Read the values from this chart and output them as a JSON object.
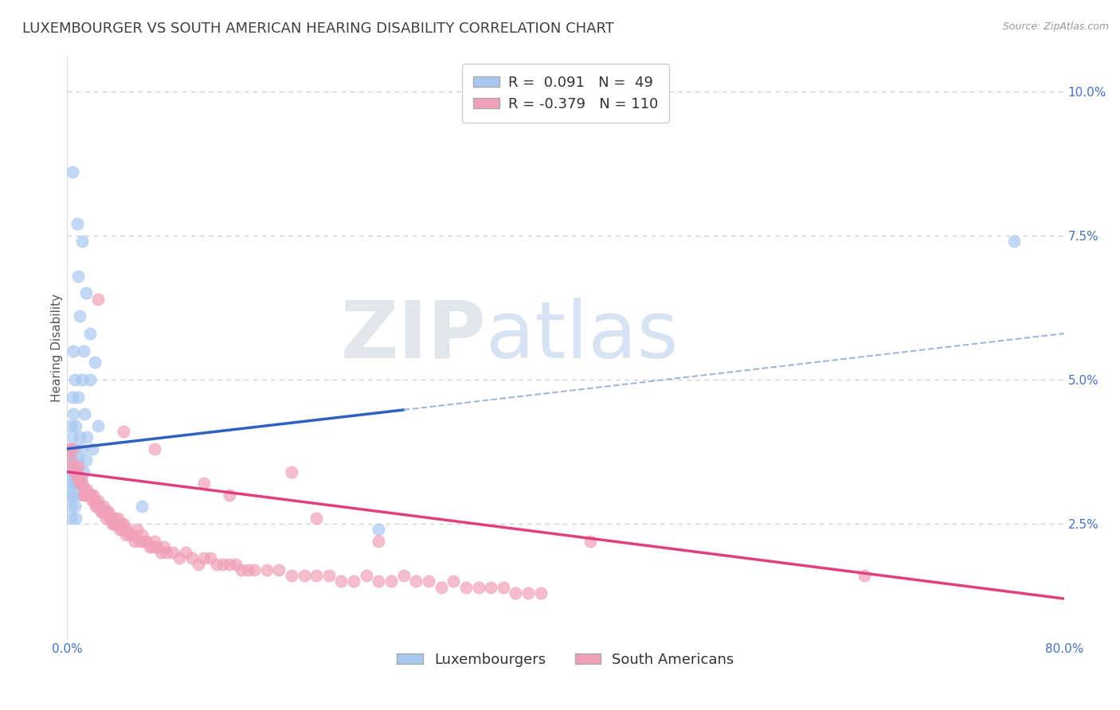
{
  "title": "LUXEMBOURGER VS SOUTH AMERICAN HEARING DISABILITY CORRELATION CHART",
  "source_text": "Source: ZipAtlas.com",
  "ylabel": "Hearing Disability",
  "watermark_zip": "ZIP",
  "watermark_atlas": "atlas",
  "xmin": 0.0,
  "xmax": 0.8,
  "ymin": 0.005,
  "ymax": 0.106,
  "yticks": [
    0.025,
    0.05,
    0.075,
    0.1
  ],
  "ytick_labels": [
    "2.5%",
    "5.0%",
    "7.5%",
    "10.0%"
  ],
  "xticks": [
    0.0,
    0.8
  ],
  "xtick_labels": [
    "0.0%",
    "80.0%"
  ],
  "blue_color": "#A8C8F0",
  "pink_color": "#F0A0B8",
  "blue_line_color": "#3060C0",
  "pink_line_color": "#E04080",
  "dashed_line_color": "#A0B8D8",
  "blue_R": 0.091,
  "blue_N": 49,
  "pink_R": -0.379,
  "pink_N": 110,
  "legend_label_blue": "Luxembourgers",
  "legend_label_pink": "South Americans",
  "background_color": "#FFFFFF",
  "grid_color": "#C8C8C8",
  "title_color": "#404040",
  "axis_label_color": "#4472C4",
  "blue_trend_x0": 0.0,
  "blue_trend_y0": 0.038,
  "blue_trend_x1": 0.8,
  "blue_trend_y1": 0.058,
  "pink_trend_x0": 0.0,
  "pink_trend_y0": 0.034,
  "pink_trend_x1": 0.8,
  "pink_trend_y1": 0.012,
  "blue_scatter": [
    [
      0.004,
      0.086
    ],
    [
      0.008,
      0.077
    ],
    [
      0.012,
      0.074
    ],
    [
      0.009,
      0.068
    ],
    [
      0.015,
      0.065
    ],
    [
      0.01,
      0.061
    ],
    [
      0.018,
      0.058
    ],
    [
      0.005,
      0.055
    ],
    [
      0.013,
      0.055
    ],
    [
      0.022,
      0.053
    ],
    [
      0.006,
      0.05
    ],
    [
      0.012,
      0.05
    ],
    [
      0.018,
      0.05
    ],
    [
      0.004,
      0.047
    ],
    [
      0.009,
      0.047
    ],
    [
      0.005,
      0.044
    ],
    [
      0.014,
      0.044
    ],
    [
      0.003,
      0.042
    ],
    [
      0.007,
      0.042
    ],
    [
      0.025,
      0.042
    ],
    [
      0.004,
      0.04
    ],
    [
      0.01,
      0.04
    ],
    [
      0.016,
      0.04
    ],
    [
      0.003,
      0.038
    ],
    [
      0.006,
      0.038
    ],
    [
      0.012,
      0.038
    ],
    [
      0.02,
      0.038
    ],
    [
      0.002,
      0.036
    ],
    [
      0.005,
      0.036
    ],
    [
      0.009,
      0.036
    ],
    [
      0.015,
      0.036
    ],
    [
      0.002,
      0.034
    ],
    [
      0.004,
      0.034
    ],
    [
      0.008,
      0.034
    ],
    [
      0.013,
      0.034
    ],
    [
      0.002,
      0.032
    ],
    [
      0.004,
      0.032
    ],
    [
      0.007,
      0.032
    ],
    [
      0.011,
      0.032
    ],
    [
      0.002,
      0.03
    ],
    [
      0.005,
      0.03
    ],
    [
      0.009,
      0.03
    ],
    [
      0.003,
      0.028
    ],
    [
      0.006,
      0.028
    ],
    [
      0.003,
      0.026
    ],
    [
      0.007,
      0.026
    ],
    [
      0.76,
      0.074
    ],
    [
      0.06,
      0.028
    ],
    [
      0.25,
      0.024
    ]
  ],
  "pink_scatter": [
    [
      0.002,
      0.038
    ],
    [
      0.003,
      0.036
    ],
    [
      0.004,
      0.038
    ],
    [
      0.005,
      0.035
    ],
    [
      0.006,
      0.034
    ],
    [
      0.007,
      0.034
    ],
    [
      0.008,
      0.033
    ],
    [
      0.009,
      0.035
    ],
    [
      0.01,
      0.032
    ],
    [
      0.011,
      0.033
    ],
    [
      0.012,
      0.032
    ],
    [
      0.013,
      0.03
    ],
    [
      0.014,
      0.031
    ],
    [
      0.015,
      0.03
    ],
    [
      0.016,
      0.031
    ],
    [
      0.017,
      0.03
    ],
    [
      0.018,
      0.03
    ],
    [
      0.019,
      0.03
    ],
    [
      0.02,
      0.029
    ],
    [
      0.021,
      0.03
    ],
    [
      0.022,
      0.029
    ],
    [
      0.023,
      0.028
    ],
    [
      0.024,
      0.028
    ],
    [
      0.025,
      0.029
    ],
    [
      0.026,
      0.028
    ],
    [
      0.027,
      0.027
    ],
    [
      0.028,
      0.027
    ],
    [
      0.029,
      0.028
    ],
    [
      0.03,
      0.027
    ],
    [
      0.031,
      0.026
    ],
    [
      0.032,
      0.027
    ],
    [
      0.033,
      0.027
    ],
    [
      0.034,
      0.026
    ],
    [
      0.035,
      0.026
    ],
    [
      0.036,
      0.025
    ],
    [
      0.037,
      0.025
    ],
    [
      0.038,
      0.026
    ],
    [
      0.039,
      0.025
    ],
    [
      0.04,
      0.025
    ],
    [
      0.041,
      0.026
    ],
    [
      0.042,
      0.024
    ],
    [
      0.043,
      0.025
    ],
    [
      0.044,
      0.024
    ],
    [
      0.045,
      0.025
    ],
    [
      0.046,
      0.024
    ],
    [
      0.047,
      0.023
    ],
    [
      0.048,
      0.024
    ],
    [
      0.05,
      0.023
    ],
    [
      0.052,
      0.023
    ],
    [
      0.054,
      0.022
    ],
    [
      0.056,
      0.024
    ],
    [
      0.058,
      0.022
    ],
    [
      0.06,
      0.023
    ],
    [
      0.062,
      0.022
    ],
    [
      0.064,
      0.022
    ],
    [
      0.066,
      0.021
    ],
    [
      0.068,
      0.021
    ],
    [
      0.07,
      0.022
    ],
    [
      0.072,
      0.021
    ],
    [
      0.075,
      0.02
    ],
    [
      0.078,
      0.021
    ],
    [
      0.08,
      0.02
    ],
    [
      0.085,
      0.02
    ],
    [
      0.09,
      0.019
    ],
    [
      0.095,
      0.02
    ],
    [
      0.1,
      0.019
    ],
    [
      0.105,
      0.018
    ],
    [
      0.11,
      0.019
    ],
    [
      0.115,
      0.019
    ],
    [
      0.12,
      0.018
    ],
    [
      0.125,
      0.018
    ],
    [
      0.13,
      0.018
    ],
    [
      0.135,
      0.018
    ],
    [
      0.14,
      0.017
    ],
    [
      0.145,
      0.017
    ],
    [
      0.15,
      0.017
    ],
    [
      0.16,
      0.017
    ],
    [
      0.17,
      0.017
    ],
    [
      0.18,
      0.016
    ],
    [
      0.19,
      0.016
    ],
    [
      0.2,
      0.016
    ],
    [
      0.21,
      0.016
    ],
    [
      0.22,
      0.015
    ],
    [
      0.23,
      0.015
    ],
    [
      0.24,
      0.016
    ],
    [
      0.25,
      0.015
    ],
    [
      0.26,
      0.015
    ],
    [
      0.27,
      0.016
    ],
    [
      0.28,
      0.015
    ],
    [
      0.29,
      0.015
    ],
    [
      0.3,
      0.014
    ],
    [
      0.31,
      0.015
    ],
    [
      0.32,
      0.014
    ],
    [
      0.33,
      0.014
    ],
    [
      0.34,
      0.014
    ],
    [
      0.35,
      0.014
    ],
    [
      0.36,
      0.013
    ],
    [
      0.37,
      0.013
    ],
    [
      0.38,
      0.013
    ],
    [
      0.025,
      0.064
    ],
    [
      0.18,
      0.034
    ],
    [
      0.045,
      0.041
    ],
    [
      0.07,
      0.038
    ],
    [
      0.11,
      0.032
    ],
    [
      0.13,
      0.03
    ],
    [
      0.2,
      0.026
    ],
    [
      0.25,
      0.022
    ],
    [
      0.64,
      0.016
    ],
    [
      0.42,
      0.022
    ]
  ],
  "title_fontsize": 13,
  "axis_fontsize": 11,
  "tick_fontsize": 11,
  "legend_fontsize": 13
}
